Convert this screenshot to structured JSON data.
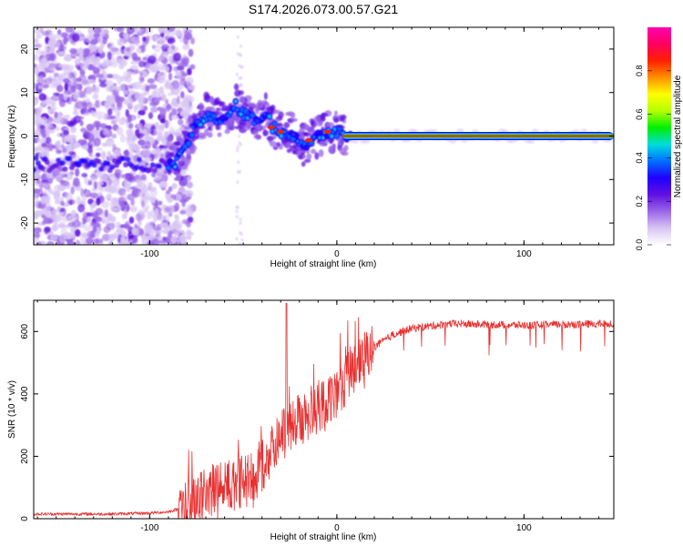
{
  "title": "S174.2026.073.00.57.G21",
  "chart_data": [
    {
      "type": "heatmap",
      "name": "spectrogram",
      "xlabel": "Height of straight line (km)",
      "ylabel": "Frequency (Hz)",
      "xlim": [
        -162,
        148
      ],
      "ylim": [
        -25,
        25
      ],
      "xticks": [
        -100,
        0,
        100
      ],
      "yticks": [
        -20,
        -10,
        0,
        10,
        20
      ],
      "colorbar": {
        "label": "Normalized spectral amplitude",
        "range": [
          0,
          1
        ],
        "ticks": [
          "0.0",
          "0.2",
          "0.4",
          "0.6",
          "0.8"
        ],
        "colors": [
          "#ffffff",
          "#d8c4f4",
          "#9a66e8",
          "#6010e0",
          "#2000ff",
          "#0070ff",
          "#00dcdc",
          "#00f000",
          "#b4ff00",
          "#ffff00",
          "#ff9000",
          "#ff2000",
          "#ff0060",
          "#ff00b0"
        ]
      },
      "ridge": {
        "description": "dominant frequency track vs height",
        "x": [
          -90,
          -86,
          -82,
          -78,
          -74,
          -70,
          -66,
          -62,
          -58,
          -54,
          -50,
          -46,
          -42,
          -38,
          -34,
          -30,
          -26,
          -22,
          -18,
          -14,
          -10,
          -6,
          -2,
          2,
          6,
          10,
          30,
          60,
          90,
          120,
          148
        ],
        "y": [
          -7,
          -6,
          -3,
          0,
          3,
          5,
          4,
          4,
          5,
          7,
          5,
          4,
          4,
          5,
          2,
          1,
          1,
          0,
          -2,
          -1,
          0,
          1,
          1,
          1,
          0,
          0,
          0,
          0,
          0,
          0,
          0
        ]
      }
    },
    {
      "type": "line",
      "name": "snr",
      "xlabel": "Height of straight line (km)",
      "ylabel": "SNR (10 * v/v)",
      "xlim": [
        -162,
        148
      ],
      "ylim": [
        0,
        700
      ],
      "xticks": [
        -100,
        0,
        100
      ],
      "yticks": [
        0,
        200,
        400,
        600
      ],
      "color": "#e83030",
      "trend": {
        "x": [
          -162,
          -120,
          -100,
          -90,
          -80,
          -70,
          -60,
          -50,
          -40,
          -30,
          -20,
          -10,
          0,
          10,
          20,
          30,
          40,
          60,
          100,
          148
        ],
        "y": [
          15,
          15,
          18,
          22,
          40,
          80,
          110,
          120,
          160,
          260,
          330,
          360,
          410,
          490,
          550,
          590,
          610,
          625,
          620,
          625
        ]
      }
    }
  ]
}
